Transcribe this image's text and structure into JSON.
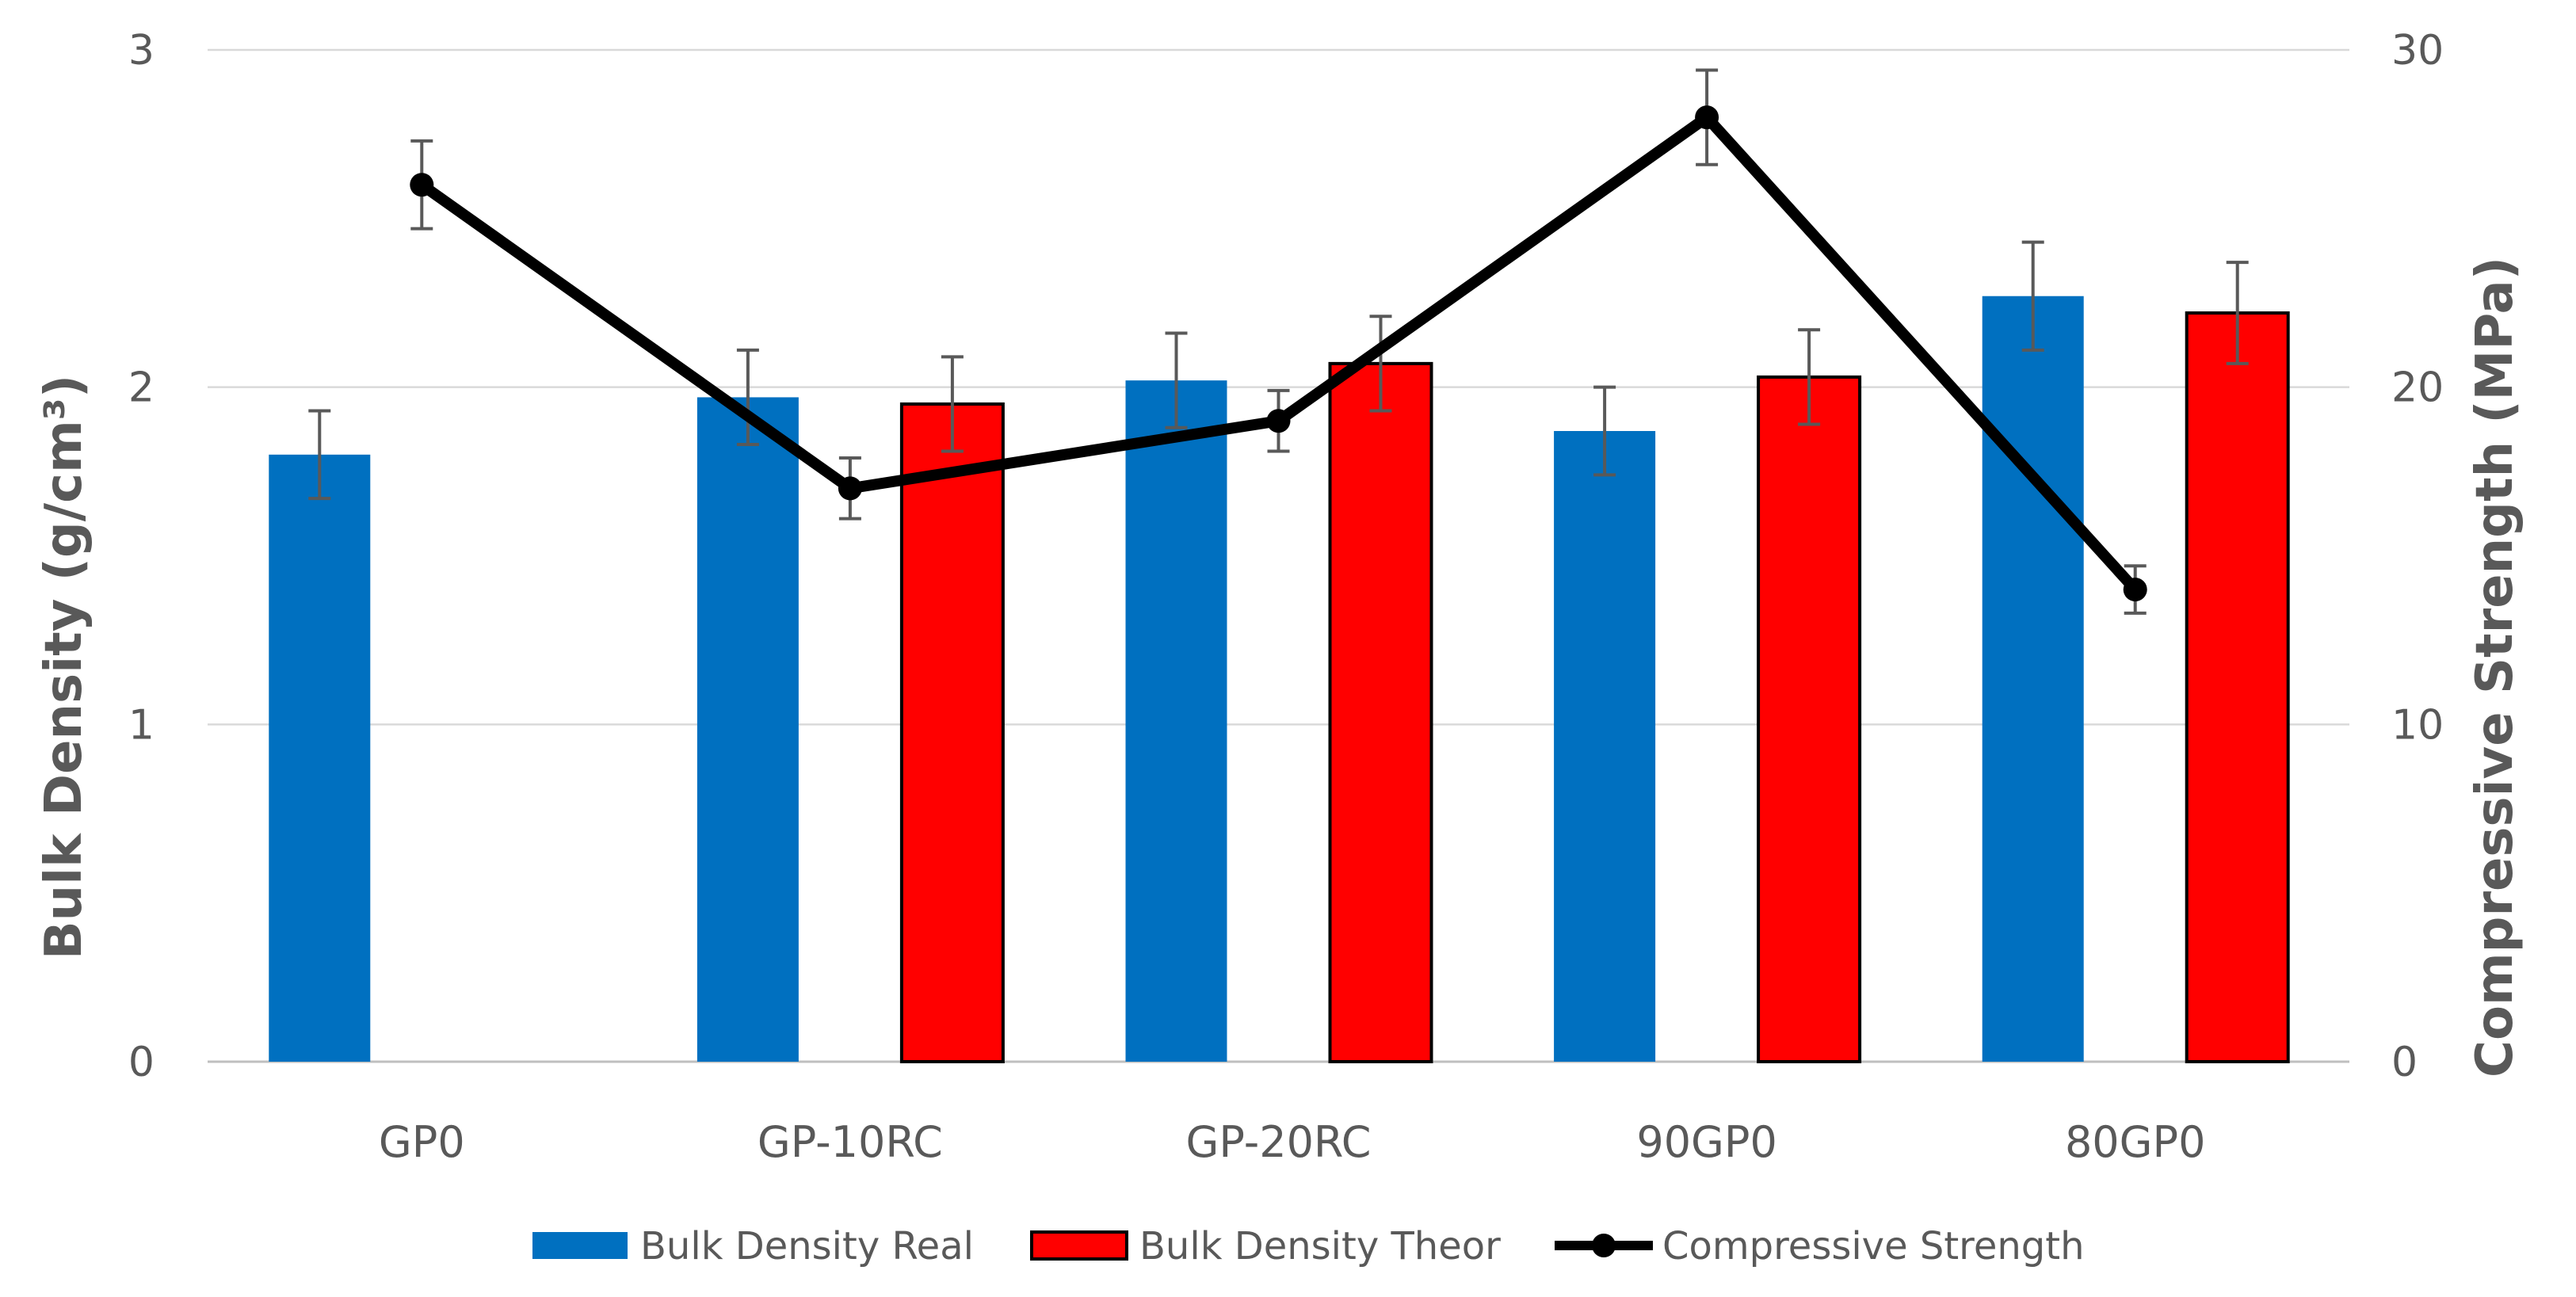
{
  "chart_data": {
    "type": "bar",
    "categories": [
      "GP0",
      "GP-10RC",
      "GP-20RC",
      "90GP0",
      "80GP0"
    ],
    "y_left": {
      "label": "Bulk Density (g/cm³)",
      "ylim": [
        0,
        3
      ],
      "ticks": [
        "0",
        "1",
        "2",
        "3"
      ]
    },
    "y_right": {
      "label": "Compressive Strength (MPa)",
      "ylim": [
        0,
        30
      ],
      "ticks": [
        "0",
        "10",
        "20",
        "30"
      ]
    },
    "series": [
      {
        "name": "Bulk Density Real",
        "kind": "bar",
        "axis": "left",
        "color": "#0070C0",
        "values": [
          1.8,
          1.97,
          2.02,
          1.87,
          2.27
        ],
        "errors": [
          0.13,
          0.14,
          0.14,
          0.13,
          0.16
        ]
      },
      {
        "name": "Bulk Density Theor",
        "kind": "bar",
        "axis": "left",
        "color": "#FF0000",
        "values": [
          null,
          1.95,
          2.07,
          2.03,
          2.22
        ],
        "errors": [
          null,
          0.14,
          0.14,
          0.14,
          0.15
        ]
      },
      {
        "name": "Compressive Strength",
        "kind": "line",
        "axis": "right",
        "color": "#000000",
        "values": [
          26,
          17,
          19,
          28,
          14
        ],
        "errors": [
          1.3,
          0.9,
          0.9,
          1.4,
          0.7
        ]
      }
    ],
    "grid": true,
    "legend": "bottom"
  }
}
